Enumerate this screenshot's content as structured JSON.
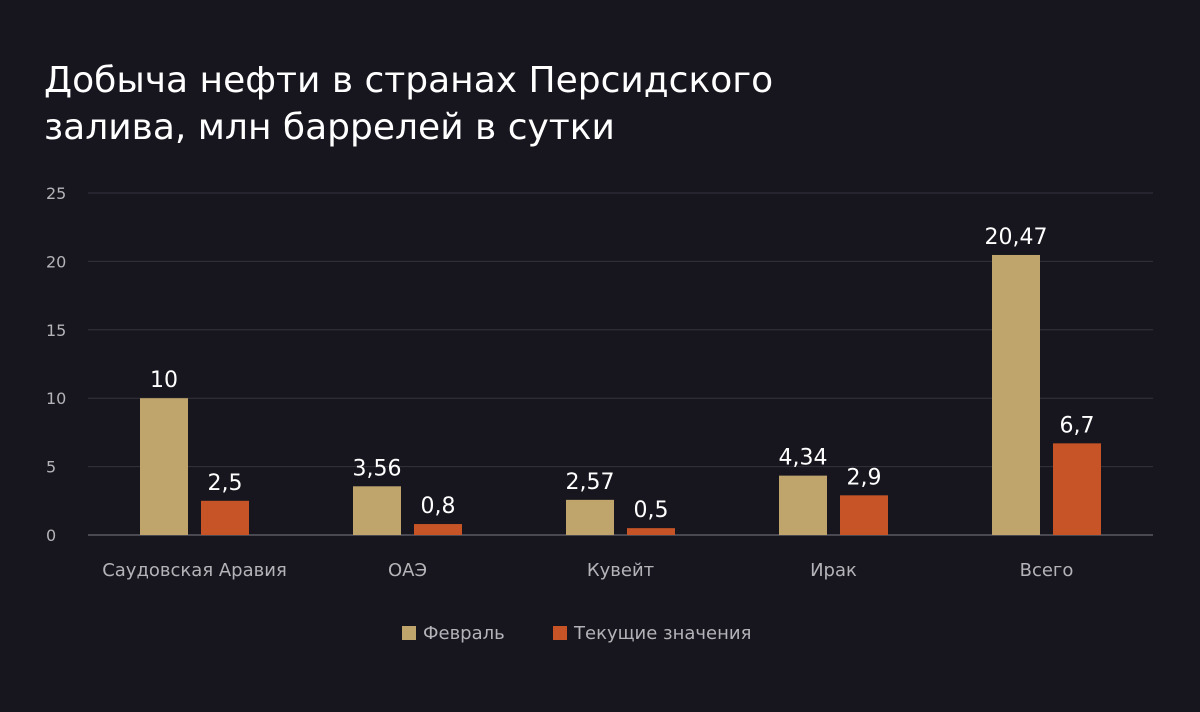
{
  "chart_data": {
    "type": "bar",
    "title_lines": [
      "Добыча нефти в странах Персидского",
      "залива, млн баррелей в сутки"
    ],
    "categories": [
      "Саудовская Аравия",
      "ОАЭ",
      "Кувейт",
      "Ирак",
      "Всего"
    ],
    "series": [
      {
        "name": "Февраль",
        "color": "#bfa46c",
        "values": [
          10,
          3.56,
          2.57,
          4.34,
          20.47
        ],
        "labels": [
          "10",
          "3,56",
          "2,57",
          "4,34",
          "20,47"
        ]
      },
      {
        "name": "Текущие значения",
        "color": "#c75426",
        "values": [
          2.5,
          0.8,
          0.5,
          2.9,
          6.7
        ],
        "labels": [
          "2,5",
          "0,8",
          "0,5",
          "2,9",
          "6,7"
        ]
      }
    ],
    "ylim": [
      0,
      25
    ],
    "yticks": [
      0,
      5,
      10,
      15,
      20,
      25
    ],
    "grid": true,
    "legend_position": "bottom-center",
    "colors": {
      "background": "#17161f",
      "text": "#ffffff",
      "tick": "#b3b3b8",
      "grid": "#34333d"
    }
  }
}
